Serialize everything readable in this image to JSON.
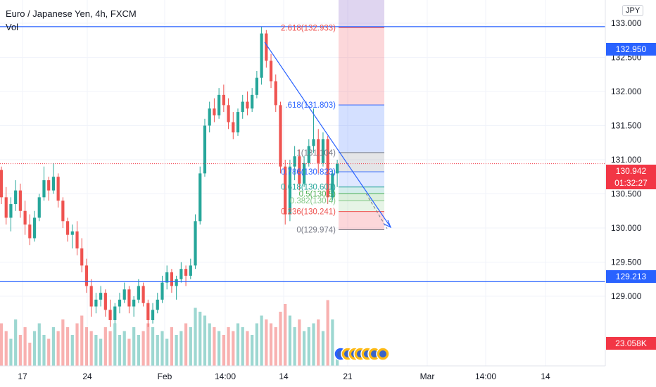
{
  "header": {
    "title": "Euro / Japanese Yen, 4h, FXCM",
    "volume_label": "Vol",
    "currency_button": "JPY"
  },
  "colors": {
    "up": "#26a69a",
    "down": "#ef5350",
    "line": "#2962ff",
    "current": "#f23645"
  },
  "price_tags": {
    "upper_line": "132.950",
    "lower_line": "129.213",
    "current_price": "130.942",
    "countdown": "01:32:27",
    "volume": "23.058K"
  },
  "chart_data": {
    "type": "candlestick",
    "symbol": "Euro / Japanese Yen",
    "interval": "4h",
    "price_axis_ticks": [
      "129.000",
      "129.500",
      "130.000",
      "130.500",
      "131.000",
      "131.500",
      "132.000",
      "132.500",
      "133.000"
    ],
    "date_axis_ticks": [
      "17",
      "24",
      "Feb",
      "14:00",
      "14",
      "21",
      "Mar",
      "14:00",
      "14"
    ],
    "horizontal_lines": [
      132.95,
      129.213
    ],
    "current_price": 130.942,
    "fib_levels": [
      {
        "label": "2.618(132.933)",
        "value": 132.933,
        "color": "#ef5350"
      },
      {
        "label": ".618(131.803)",
        "value": 131.803,
        "color": "#2962ff"
      },
      {
        "label": "1(131.104)",
        "value": 131.104,
        "color": "#787b86"
      },
      {
        "label": "0.786(130.823)",
        "value": 130.823,
        "color": "#2962ff"
      },
      {
        "label": "0.618(130.601)",
        "value": 130.601,
        "color": "#26a69a"
      },
      {
        "label": "0.5(130.5)",
        "value": 130.5,
        "color": "#4caf50"
      },
      {
        "label": "0.382(130.4)",
        "value": 130.4,
        "color": "#81c784"
      },
      {
        "label": "0.236(130.241)",
        "value": 130.241,
        "color": "#ef5350"
      },
      {
        "label": "0(129.974)",
        "value": 129.974,
        "color": "#787b86"
      }
    ],
    "ohlc": [
      [
        130.85,
        130.9,
        130.35,
        130.45
      ],
      [
        130.45,
        130.6,
        130.05,
        130.15
      ],
      [
        130.15,
        130.45,
        129.95,
        130.35
      ],
      [
        130.35,
        130.7,
        130.25,
        130.55
      ],
      [
        130.55,
        130.65,
        130.15,
        130.25
      ],
      [
        130.25,
        130.4,
        129.9,
        130.05
      ],
      [
        130.05,
        130.2,
        129.75,
        129.85
      ],
      [
        129.85,
        130.25,
        129.8,
        130.15
      ],
      [
        130.15,
        130.5,
        130.1,
        130.45
      ],
      [
        130.45,
        130.9,
        130.4,
        130.7
      ],
      [
        130.7,
        130.75,
        130.4,
        130.55
      ],
      [
        130.55,
        130.95,
        130.5,
        130.75
      ],
      [
        130.75,
        130.8,
        130.3,
        130.4
      ],
      [
        130.4,
        130.45,
        130.0,
        130.1
      ],
      [
        130.1,
        130.15,
        129.8,
        129.9
      ],
      [
        129.9,
        130.05,
        129.7,
        129.95
      ],
      [
        129.95,
        130.1,
        129.6,
        129.7
      ],
      [
        129.7,
        129.85,
        129.35,
        129.45
      ],
      [
        129.45,
        129.55,
        129.05,
        129.15
      ],
      [
        129.15,
        129.25,
        128.7,
        128.85
      ],
      [
        128.85,
        129.05,
        128.75,
        128.95
      ],
      [
        128.95,
        129.15,
        128.85,
        129.05
      ],
      [
        129.05,
        129.1,
        128.7,
        128.8
      ],
      [
        128.8,
        128.95,
        128.55,
        128.65
      ],
      [
        128.65,
        128.9,
        128.6,
        128.85
      ],
      [
        128.85,
        129.05,
        128.75,
        128.95
      ],
      [
        128.95,
        129.2,
        128.9,
        129.1
      ],
      [
        129.1,
        129.15,
        128.75,
        128.85
      ],
      [
        128.85,
        129.0,
        128.7,
        128.95
      ],
      [
        128.95,
        129.25,
        128.9,
        129.15
      ],
      [
        129.15,
        129.2,
        128.85,
        128.9
      ],
      [
        128.9,
        128.95,
        128.55,
        128.65
      ],
      [
        128.65,
        128.9,
        128.6,
        128.8
      ],
      [
        128.8,
        129.05,
        128.75,
        128.95
      ],
      [
        128.95,
        129.3,
        128.9,
        129.2
      ],
      [
        129.2,
        129.45,
        129.1,
        129.35
      ],
      [
        129.35,
        129.4,
        129.05,
        129.15
      ],
      [
        129.15,
        129.3,
        128.95,
        129.25
      ],
      [
        129.25,
        129.5,
        129.2,
        129.4
      ],
      [
        129.4,
        129.45,
        129.15,
        129.3
      ],
      [
        129.3,
        129.55,
        129.25,
        129.45
      ],
      [
        129.45,
        130.2,
        129.4,
        130.1
      ],
      [
        130.1,
        130.9,
        130.05,
        130.8
      ],
      [
        130.8,
        131.6,
        130.75,
        131.5
      ],
      [
        131.5,
        131.85,
        131.4,
        131.75
      ],
      [
        131.75,
        131.9,
        131.55,
        131.65
      ],
      [
        131.65,
        132.05,
        131.6,
        131.95
      ],
      [
        131.95,
        132.1,
        131.7,
        131.8
      ],
      [
        131.8,
        131.9,
        131.45,
        131.55
      ],
      [
        131.55,
        131.7,
        131.3,
        131.4
      ],
      [
        131.4,
        131.75,
        131.35,
        131.7
      ],
      [
        131.7,
        131.95,
        131.6,
        131.85
      ],
      [
        131.85,
        132.0,
        131.65,
        131.75
      ],
      [
        131.75,
        132.05,
        131.7,
        131.95
      ],
      [
        131.95,
        132.3,
        131.9,
        132.2
      ],
      [
        132.2,
        132.95,
        132.1,
        132.85
      ],
      [
        132.85,
        132.9,
        132.35,
        132.45
      ],
      [
        132.45,
        132.55,
        132.05,
        132.15
      ],
      [
        132.15,
        132.25,
        131.7,
        131.8
      ],
      [
        131.8,
        131.85,
        130.8,
        130.9
      ],
      [
        130.9,
        131.0,
        130.05,
        130.2
      ],
      [
        130.2,
        131.0,
        130.1,
        130.9
      ],
      [
        130.9,
        131.2,
        130.7,
        131.05
      ],
      [
        131.05,
        131.15,
        130.55,
        130.65
      ],
      [
        130.65,
        131.05,
        130.6,
        130.95
      ],
      [
        130.95,
        131.3,
        130.9,
        131.2
      ],
      [
        131.2,
        131.75,
        131.1,
        131.3
      ],
      [
        131.3,
        131.45,
        130.8,
        130.95
      ],
      [
        130.95,
        131.4,
        130.9,
        131.3
      ],
      [
        131.3,
        131.35,
        130.35,
        130.45
      ],
      [
        130.45,
        130.85,
        130.4,
        130.8
      ],
      [
        130.8,
        131.0,
        130.6,
        130.94
      ]
    ],
    "volumes": [
      0.55,
      0.45,
      0.35,
      0.6,
      0.4,
      0.5,
      0.3,
      0.45,
      0.55,
      0.4,
      0.35,
      0.5,
      0.45,
      0.6,
      0.5,
      0.4,
      0.55,
      0.65,
      0.5,
      0.45,
      0.4,
      0.35,
      0.5,
      0.45,
      0.55,
      0.4,
      0.45,
      0.35,
      0.5,
      0.4,
      0.45,
      0.55,
      0.5,
      0.4,
      0.45,
      0.35,
      0.5,
      0.4,
      0.45,
      0.55,
      0.5,
      0.75,
      0.7,
      0.65,
      0.55,
      0.5,
      0.45,
      0.4,
      0.5,
      0.45,
      0.55,
      0.5,
      0.45,
      0.4,
      0.55,
      0.65,
      0.6,
      0.55,
      0.5,
      0.7,
      0.8,
      0.65,
      0.5,
      0.6,
      0.45,
      0.5,
      0.55,
      0.6,
      0.45,
      0.85,
      0.6,
      0.15
    ]
  }
}
